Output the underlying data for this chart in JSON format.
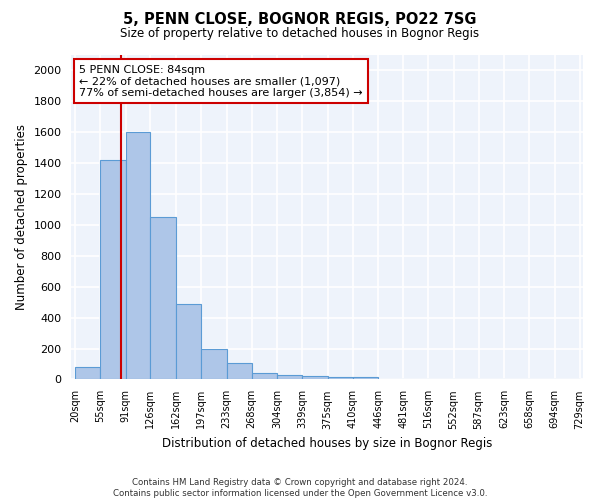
{
  "title": "5, PENN CLOSE, BOGNOR REGIS, PO22 7SG",
  "subtitle": "Size of property relative to detached houses in Bognor Regis",
  "xlabel": "Distribution of detached houses by size in Bognor Regis",
  "ylabel": "Number of detached properties",
  "bar_categories": [
    "20sqm",
    "55sqm",
    "91sqm",
    "126sqm",
    "162sqm",
    "197sqm",
    "233sqm",
    "268sqm",
    "304sqm",
    "339sqm",
    "375sqm",
    "410sqm",
    "446sqm",
    "481sqm",
    "516sqm",
    "552sqm",
    "587sqm",
    "623sqm",
    "658sqm",
    "694sqm",
    "729sqm"
  ],
  "bar_values": [
    80,
    1420,
    1600,
    1050,
    490,
    200,
    105,
    40,
    28,
    20,
    18,
    18,
    0,
    0,
    0,
    0,
    0,
    0,
    0,
    0,
    0
  ],
  "bar_color": "#aec6e8",
  "bar_edge_color": "#5b9bd5",
  "background_color": "#eef3fb",
  "grid_color": "#ffffff",
  "annotation_box_color": "#cc0000",
  "property_line_color": "#cc0000",
  "property_line_x": 84,
  "annotation_title": "5 PENN CLOSE: 84sqm",
  "annotation_line1": "← 22% of detached houses are smaller (1,097)",
  "annotation_line2": "77% of semi-detached houses are larger (3,854) →",
  "ylim": [
    0,
    2100
  ],
  "yticks": [
    0,
    200,
    400,
    600,
    800,
    1000,
    1200,
    1400,
    1600,
    1800,
    2000
  ],
  "bin_edges": [
    20,
    55,
    91,
    126,
    162,
    197,
    233,
    268,
    304,
    339,
    375,
    410,
    446,
    481,
    516,
    552,
    587,
    623,
    658,
    694,
    729
  ],
  "footnote1": "Contains HM Land Registry data © Crown copyright and database right 2024.",
  "footnote2": "Contains public sector information licensed under the Open Government Licence v3.0."
}
